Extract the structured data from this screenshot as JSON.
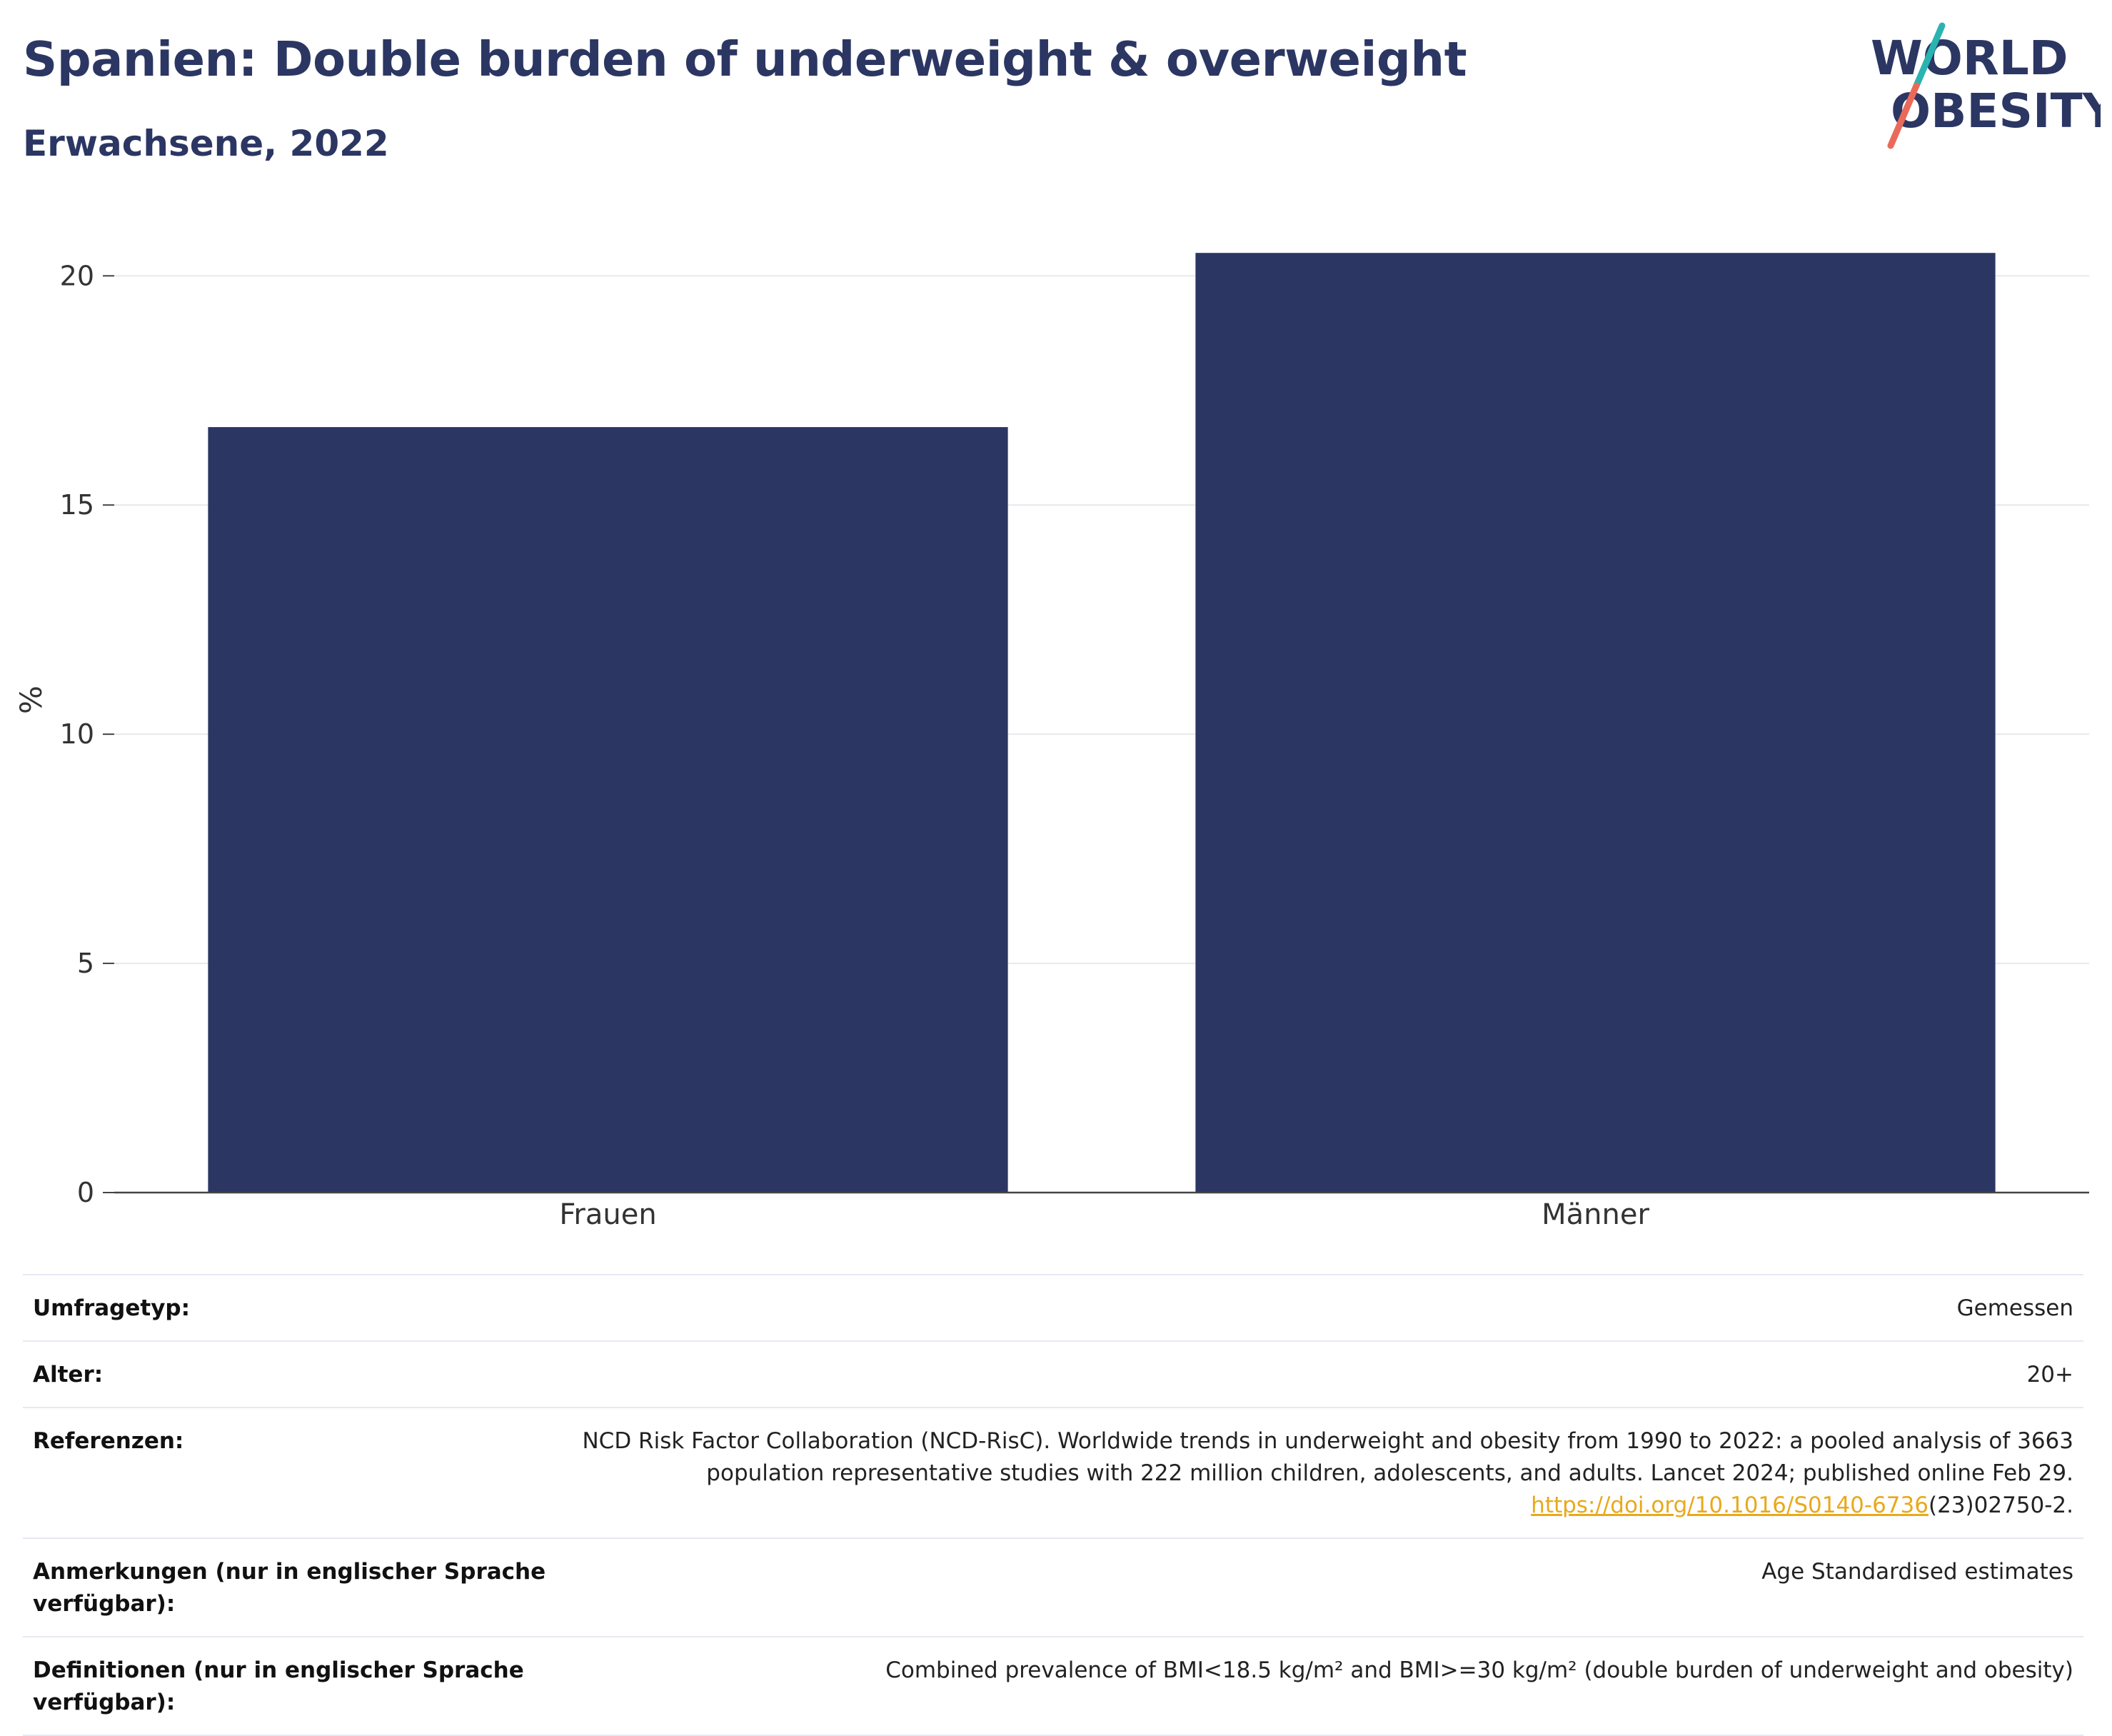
{
  "header": {
    "title": "Spanien: Double burden of underweight & overweight",
    "subtitle": "Erwachsene, 2022"
  },
  "logo": {
    "line1": "WORLD",
    "line2": "OBESITY",
    "colors": {
      "text": "#2b3663",
      "slash_top": "#2ab3b1",
      "slash_bottom": "#ea6a5a"
    }
  },
  "colors": {
    "bar": "#2b3663",
    "grid": "#e8e8ee",
    "axis": "#444444",
    "link": "#e9a91b"
  },
  "chart_data": {
    "type": "bar",
    "categories": [
      "Frauen",
      "Männer"
    ],
    "values": [
      16.7,
      20.5
    ],
    "title": "Spanien: Double burden of underweight & overweight",
    "subtitle": "Erwachsene, 2022",
    "xlabel": "",
    "ylabel": "%",
    "ylim": [
      0,
      21.5
    ],
    "yticks": [
      0,
      5,
      10,
      15,
      20
    ],
    "grid": true,
    "legend": "none"
  },
  "meta": {
    "rows": [
      {
        "label": "Umfragetyp:",
        "value": "Gemessen"
      },
      {
        "label": "Alter:",
        "value": "20+"
      },
      {
        "label": "Referenzen:",
        "value": "NCD Risk Factor Collaboration (NCD-RisC). Worldwide trends in underweight and obesity from 1990 to 2022: a pooled analysis of 3663 population representative studies with 222 million children, adolescents, and adults. Lancet 2024; published online Feb 29.",
        "link": "https://doi.org/10.1016/S0140-6736",
        "link_suffix": "(23)02750-2."
      },
      {
        "label": "Anmerkungen (nur in englischer Sprache verfügbar):",
        "value": "Age Standardised estimates"
      },
      {
        "label": "Definitionen (nur in englischer Sprache verfügbar):",
        "value": "Combined prevalence of BMI<18.5 kg/m² and BMI>=30 kg/m² (double burden of underweight and obesity)"
      }
    ]
  }
}
